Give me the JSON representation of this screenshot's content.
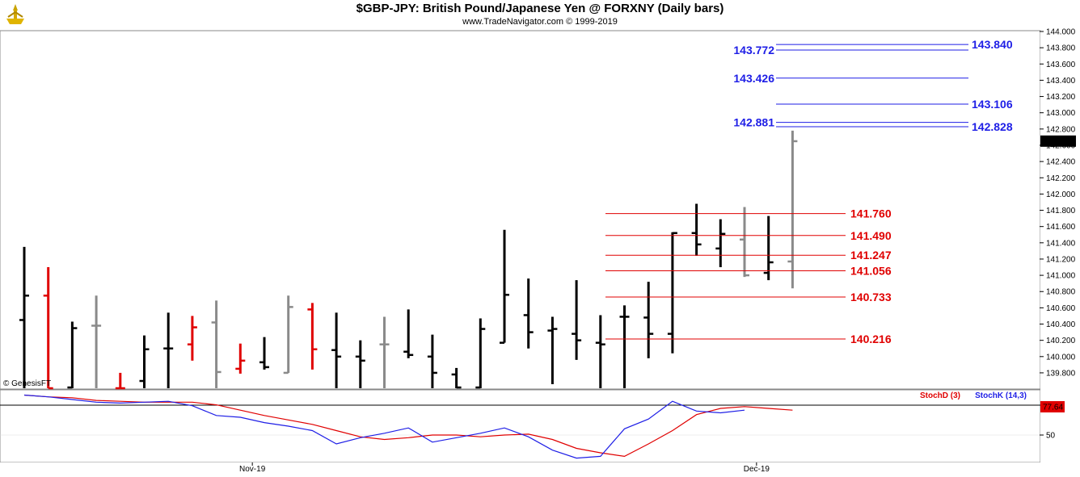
{
  "header": {
    "title": "$GBP-JPY:  British Pound/Japanese Yen @ FORXNY  (Daily bars)",
    "subtitle": "www.TradeNavigator.com © 1999-2019"
  },
  "footer": {
    "copyright": "© GenesisFT"
  },
  "colors": {
    "blue": "#1e1ee6",
    "red": "#e00000",
    "black": "#000000",
    "gray": "#8a8a8a",
    "stochD": "#e00000",
    "stochK": "#1e1ee6"
  },
  "chart_data": [
    {
      "type": "ohlc",
      "title": "$GBP-JPY:  British Pound/Japanese Yen @ FORXNY  (Daily bars)",
      "ylim": [
        139.62,
        144.0
      ],
      "y_ticks": [
        "144.000",
        "143.800",
        "143.600",
        "143.400",
        "143.200",
        "143.000",
        "142.800",
        "142.600",
        "142.400",
        "142.200",
        "142.000",
        "141.800",
        "141.600",
        "141.400",
        "141.200",
        "141.000",
        "140.800",
        "140.600",
        "140.400",
        "140.200",
        "140.000",
        "139.800"
      ],
      "last_price": "142.651",
      "x_labels": [
        {
          "label": "Nov-19",
          "bar": 9.5
        },
        {
          "label": "Dec-19",
          "bar": 30.5
        }
      ],
      "bars": [
        {
          "o": 140.45,
          "h": 141.35,
          "l": 139.6,
          "c": 140.75,
          "col": "black"
        },
        {
          "o": 140.75,
          "h": 141.1,
          "l": 139.6,
          "c": 139.6,
          "col": "red"
        },
        {
          "o": 139.62,
          "h": 140.43,
          "l": 139.6,
          "c": 140.35,
          "col": "black"
        },
        {
          "o": 140.38,
          "h": 140.75,
          "l": 139.6,
          "c": 140.38,
          "col": "gray"
        },
        {
          "o": 139.6,
          "h": 139.8,
          "l": 139.6,
          "c": 139.6,
          "col": "red"
        },
        {
          "o": 139.7,
          "h": 140.26,
          "l": 139.6,
          "c": 140.09,
          "col": "black"
        },
        {
          "o": 140.1,
          "h": 140.54,
          "l": 139.6,
          "c": 140.1,
          "col": "black"
        },
        {
          "o": 140.15,
          "h": 140.5,
          "l": 139.95,
          "c": 140.36,
          "col": "red"
        },
        {
          "o": 140.42,
          "h": 140.69,
          "l": 139.6,
          "c": 139.81,
          "col": "gray"
        },
        {
          "o": 139.85,
          "h": 140.16,
          "l": 139.79,
          "c": 139.95,
          "col": "red"
        },
        {
          "o": 139.93,
          "h": 140.24,
          "l": 139.84,
          "c": 139.87,
          "col": "black"
        },
        {
          "o": 139.8,
          "h": 140.75,
          "l": 139.8,
          "c": 140.61,
          "col": "gray"
        },
        {
          "o": 140.58,
          "h": 140.66,
          "l": 139.84,
          "c": 140.09,
          "col": "red"
        },
        {
          "o": 140.08,
          "h": 140.54,
          "l": 139.6,
          "c": 140.0,
          "col": "black"
        },
        {
          "o": 140.0,
          "h": 140.2,
          "l": 139.6,
          "c": 139.95,
          "col": "black"
        },
        {
          "o": 140.15,
          "h": 140.49,
          "l": 139.6,
          "c": 140.15,
          "col": "gray"
        },
        {
          "o": 140.06,
          "h": 140.58,
          "l": 139.98,
          "c": 140.02,
          "col": "black"
        },
        {
          "o": 140.0,
          "h": 140.27,
          "l": 139.6,
          "c": 139.8,
          "col": "black"
        },
        {
          "o": 139.78,
          "h": 139.86,
          "l": 139.6,
          "c": 139.62,
          "col": "black"
        },
        {
          "o": 139.62,
          "h": 140.47,
          "l": 139.6,
          "c": 140.34,
          "col": "black"
        },
        {
          "o": 140.17,
          "h": 141.56,
          "l": 140.17,
          "c": 140.76,
          "col": "black"
        },
        {
          "o": 140.51,
          "h": 140.96,
          "l": 140.1,
          "c": 140.3,
          "col": "black"
        },
        {
          "o": 140.32,
          "h": 140.49,
          "l": 139.66,
          "c": 140.34,
          "col": "black"
        },
        {
          "o": 140.28,
          "h": 140.94,
          "l": 139.96,
          "c": 140.2,
          "col": "black"
        },
        {
          "o": 140.17,
          "h": 140.51,
          "l": 139.6,
          "c": 140.15,
          "col": "black"
        },
        {
          "o": 140.49,
          "h": 140.63,
          "l": 139.6,
          "c": 140.49,
          "col": "black"
        },
        {
          "o": 140.48,
          "h": 140.92,
          "l": 139.98,
          "c": 140.28,
          "col": "black"
        },
        {
          "o": 140.28,
          "h": 141.53,
          "l": 140.04,
          "c": 141.52,
          "col": "black"
        },
        {
          "o": 141.52,
          "h": 141.88,
          "l": 141.24,
          "c": 141.38,
          "col": "black"
        },
        {
          "o": 141.33,
          "h": 141.69,
          "l": 141.1,
          "c": 141.51,
          "col": "black"
        },
        {
          "o": 141.44,
          "h": 141.84,
          "l": 140.98,
          "c": 141.0,
          "col": "gray"
        },
        {
          "o": 141.03,
          "h": 141.73,
          "l": 140.94,
          "c": 141.16,
          "col": "black"
        },
        {
          "o": 141.17,
          "h": 142.78,
          "l": 140.84,
          "c": 142.65,
          "col": "gray"
        }
      ],
      "levels": [
        {
          "value": 143.84,
          "label": "143.840",
          "color": "blue",
          "side": "right"
        },
        {
          "value": 143.772,
          "label": "143.772",
          "color": "blue",
          "side": "left"
        },
        {
          "value": 143.426,
          "label": "143.426",
          "color": "blue",
          "side": "left"
        },
        {
          "value": 143.106,
          "label": "143.106",
          "color": "blue",
          "side": "right"
        },
        {
          "value": 142.881,
          "label": "142.881",
          "color": "blue",
          "side": "left"
        },
        {
          "value": 142.828,
          "label": "142.828",
          "color": "blue",
          "side": "right"
        },
        {
          "value": 141.76,
          "label": "141.760",
          "color": "red",
          "side": "right"
        },
        {
          "value": 141.49,
          "label": "141.490",
          "color": "red",
          "side": "right"
        },
        {
          "value": 141.247,
          "label": "141.247",
          "color": "red",
          "side": "right"
        },
        {
          "value": 141.056,
          "label": "141.056",
          "color": "red",
          "side": "right"
        },
        {
          "value": 140.733,
          "label": "140.733",
          "color": "red",
          "side": "right"
        },
        {
          "value": 140.216,
          "label": "140.216",
          "color": "red",
          "side": "right"
        }
      ]
    },
    {
      "type": "line",
      "ylim": [
        20,
        100
      ],
      "y_ticks": [
        "50"
      ],
      "last_value": "77.64",
      "series": [
        {
          "name": "StochD (3)",
          "color": "stochD",
          "values": [
            95,
            93,
            92,
            89,
            88,
            87,
            87,
            87,
            84,
            78,
            72,
            67,
            62,
            55,
            48,
            45,
            47,
            50,
            50,
            48,
            50,
            51,
            45,
            35,
            30,
            26,
            40,
            55,
            73,
            80,
            82,
            80,
            78
          ]
        },
        {
          "name": "StochK (14,3)",
          "color": "stochK",
          "values": [
            95,
            93,
            90,
            87,
            86,
            87,
            88,
            83,
            72,
            70,
            64,
            60,
            55,
            40,
            47,
            52,
            58,
            42,
            47,
            52,
            58,
            48,
            33,
            24,
            26,
            57,
            68,
            88,
            77,
            75,
            78,
            null,
            null
          ]
        }
      ]
    }
  ]
}
